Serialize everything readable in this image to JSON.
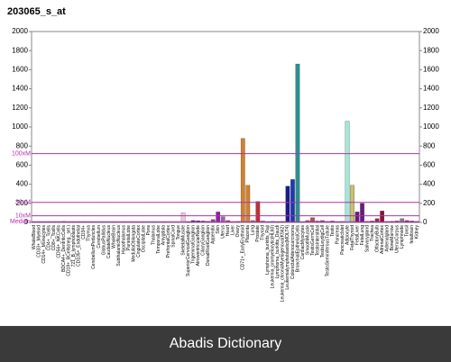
{
  "chart_data": {
    "type": "bar",
    "title": "203065_s_at",
    "categories": [
      "WholeBlood",
      "CD33+_Myeloid",
      "CD14+_Monocytes",
      "CD4+_Tcells",
      "CD8+_Tcells",
      "CD56+_NKCells",
      "BDCA4+_DentriticCells",
      "CD19+_BCells(neg._sel.)",
      "721_B_lymphoblasts",
      "CD105+_Endothelial",
      "CD34+",
      "Thymus",
      "CerebellumPeduncles",
      "Cerebellum",
      "GlobusPallidus",
      "CaudateNucleus",
      "WholeBrain",
      "SubthalamicNucleus",
      "Hypothalamus",
      "ParietalLobe",
      "MedullaOblongata",
      "CingulateCortex",
      "OccipitalLobe",
      "Pons",
      "Thalamus",
      "TemporalLobe",
      "Amygdala",
      "PrefrontalCortex",
      "SpinalCord",
      "Tongue",
      "SkeletalMuscle",
      "SuperiorCervicalGanglion",
      "TrigeminalGanglion",
      "AtrioventricularNode",
      "CiliaryGanglion",
      "DorsalRootGanglion",
      "Appendix",
      "Skin",
      "Uterus",
      "Heart",
      "Liver",
      "Ovary",
      "CD71+_EarlyErythroid",
      "Placenta",
      "Lung",
      "Prostate",
      "Thyroid",
      "Lymphoma_burkitts_Raji",
      "Leukemia_promyelocytic(HL60)",
      "Lymphoma_burkitts_Daudi",
      "Leukemia_chronicMyelogenous(K562)",
      "Leukemialymphoblastic(MOLT4)",
      "ColorectalAdenocarcinoma",
      "BronchialEpithelialCells",
      "CardiacMyocytes",
      "SmoothMuscle",
      "TestisGermCell",
      "TestisInterstitial",
      "TestisLeydigCell",
      "TestisSeminiferousTubule",
      "Testis",
      "Pancreas",
      "PancreaticIslet",
      "Adipocyte",
      "FetalThyroid",
      "FetalLiver",
      "FetalLung",
      "Salivarygland",
      "Trachea",
      "OlfactoryBulb",
      "AdrenalCortex",
      "Adrenalgland",
      "BoneMarrow",
      "UterusCorpus",
      "Lymphnode",
      "Tonsil",
      "fetalbrain",
      "Kidney"
    ],
    "values": [
      6,
      5,
      7,
      5,
      6,
      5,
      10,
      6,
      5,
      7,
      5,
      6,
      4,
      5,
      4,
      5,
      4,
      5,
      4,
      5,
      4,
      5,
      4,
      5,
      4,
      5,
      4,
      5,
      6,
      8,
      100,
      8,
      20,
      18,
      15,
      12,
      30,
      110,
      60,
      20,
      8,
      10,
      880,
      390,
      20,
      220,
      15,
      8,
      10,
      8,
      10,
      380,
      450,
      1660,
      8,
      20,
      50,
      15,
      20,
      10,
      15,
      8,
      10,
      1060,
      390,
      110,
      200,
      12,
      15,
      40,
      120,
      10,
      12,
      15,
      40,
      20,
      15,
      10
    ],
    "colors": [
      "#6a2a7a",
      "#6a2a7a",
      "#6a2a7a",
      "#6a2a7a",
      "#6a2a7a",
      "#6a2a7a",
      "#6a2a7a",
      "#6a2a7a",
      "#6a2a7a",
      "#6a2a7a",
      "#6a2a7a",
      "#6a2a7a",
      "#e8b0c8",
      "#e8b0c8",
      "#e8b0c8",
      "#e8b0c8",
      "#e8b0c8",
      "#e8b0c8",
      "#e8b0c8",
      "#e8b0c8",
      "#e8b0c8",
      "#e8b0c8",
      "#e8b0c8",
      "#e8b0c8",
      "#e8b0c8",
      "#e8b0c8",
      "#e8b0c8",
      "#e8b0c8",
      "#e8b0c8",
      "#f0c0d0",
      "#f0c8d8",
      "#5a2090",
      "#5a2090",
      "#5a2090",
      "#5a2090",
      "#5a2090",
      "#9a3a8a",
      "#9020a0",
      "#a060b0",
      "#c04060",
      "#c04060",
      "#c04060",
      "#d2822c",
      "#d2822c",
      "#c06060",
      "#c03030",
      "#c06060",
      "#1a1a8c",
      "#1a1a8c",
      "#1a1a8c",
      "#1a1a8c",
      "#1a1a8c",
      "#1a3ab0",
      "#2a9090",
      "#b05050",
      "#b05050",
      "#b05050",
      "#b05050",
      "#b05050",
      "#b05050",
      "#b05050",
      "#b05050",
      "#b05050",
      "#a0e8d8",
      "#c8c070",
      "#6a1a7a",
      "#6a1a7a",
      "#903040",
      "#903040",
      "#903040",
      "#8b1030",
      "#903040",
      "#903040",
      "#903040",
      "#808080",
      "#903040",
      "#903040",
      "#903040"
    ],
    "ylim": [
      0,
      2000
    ],
    "yticks": [
      0,
      200,
      400,
      600,
      800,
      1000,
      1200,
      1400,
      1600,
      1800,
      2000
    ],
    "y2lim": [
      0,
      2000
    ],
    "y2ticks": [
      0,
      200,
      400,
      600,
      800,
      1000,
      1200,
      1400,
      1600,
      1800,
      2000
    ],
    "reference_lines": [
      {
        "label": "100xM",
        "value": 720
      },
      {
        "label": "30xM",
        "value": 210
      },
      {
        "label": "10xM",
        "value": 70
      },
      {
        "label": "Median",
        "value": 7
      }
    ],
    "reference_color": "#b030b0"
  },
  "footer": "Abadis Dictionary"
}
